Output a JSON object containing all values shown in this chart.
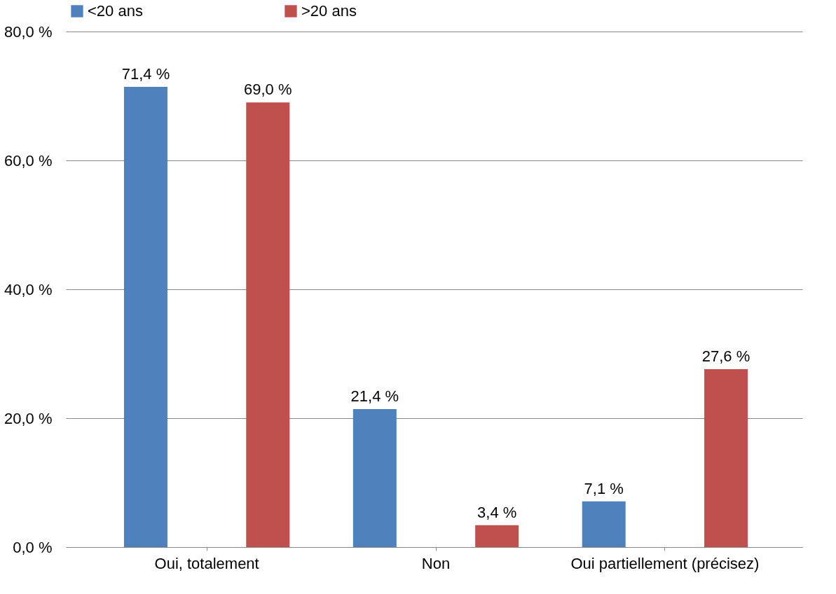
{
  "chart_data": {
    "type": "bar",
    "categories": [
      "Oui, totalement",
      "Non",
      "Oui partiellement (précisez)"
    ],
    "series": [
      {
        "name": "<20 ans",
        "color": "#4f81bd",
        "values": [
          71.4,
          21.4,
          7.1
        ],
        "value_labels": [
          "71,4 %",
          "21,4 %",
          "7,1 %"
        ]
      },
      {
        "name": ">20 ans",
        "color": "#c0504d",
        "values": [
          69.0,
          3.4,
          27.6
        ],
        "value_labels": [
          "69,0 %",
          "3,4 %",
          "27,6 %"
        ]
      }
    ],
    "ylim": [
      0,
      80
    ],
    "yticks": [
      {
        "value": 0,
        "label": "0,0 %"
      },
      {
        "value": 20,
        "label": "20,0 %"
      },
      {
        "value": 40,
        "label": "40,0 %"
      },
      {
        "value": 60,
        "label": "60,0 %"
      },
      {
        "value": 80,
        "label": "80,0 %"
      }
    ],
    "grid": "y",
    "legend": "top"
  }
}
